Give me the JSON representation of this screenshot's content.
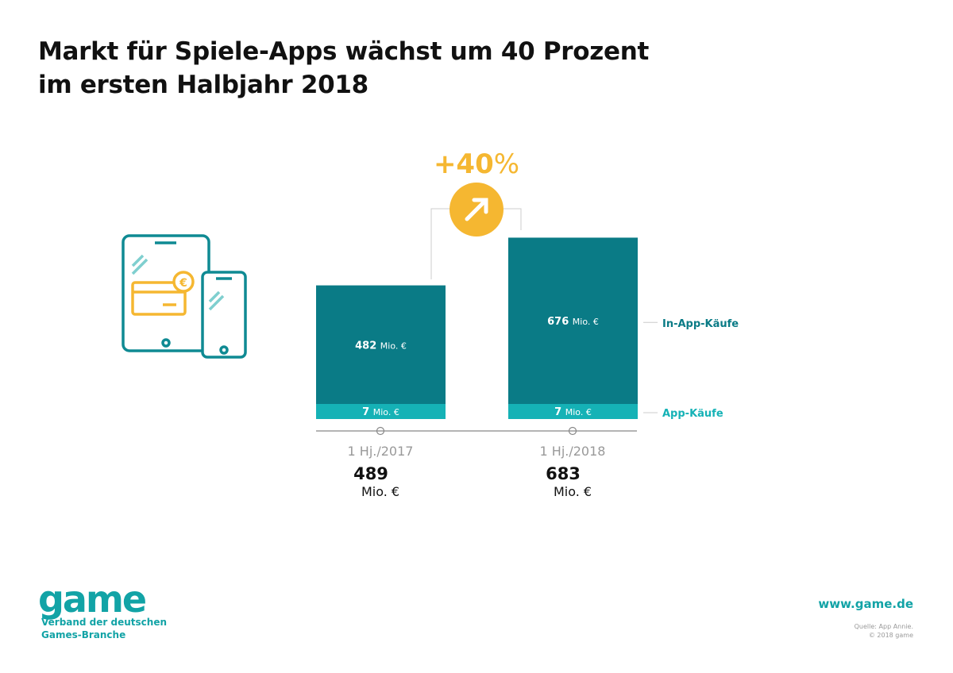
{
  "title_line1": "Markt für Spiele-Apps wächst um 40 Prozent",
  "title_line2": "im ersten Halbjahr 2018",
  "chart_data": {
    "type": "bar",
    "stacked": true,
    "categories": [
      "1 Hj./2017",
      "1 Hj./2018"
    ],
    "series": [
      {
        "name": "App-Käufe",
        "values": [
          7,
          7
        ],
        "color": "#15b2b6"
      },
      {
        "name": "In-App-Käufe",
        "values": [
          482,
          676
        ],
        "color": "#0a7b86"
      }
    ],
    "totals": [
      489,
      683
    ],
    "unit": "Mio. €",
    "growth_label": "+40",
    "growth_suffix": "%",
    "accent": "#f5b731"
  },
  "footer": {
    "logo": "game",
    "org_line1": "Verband der deutschen",
    "org_line2": "Games-Branche",
    "url": "www.game.de",
    "source_line1": "Quelle: App Annie.",
    "source_line2": "© 2018 game"
  }
}
